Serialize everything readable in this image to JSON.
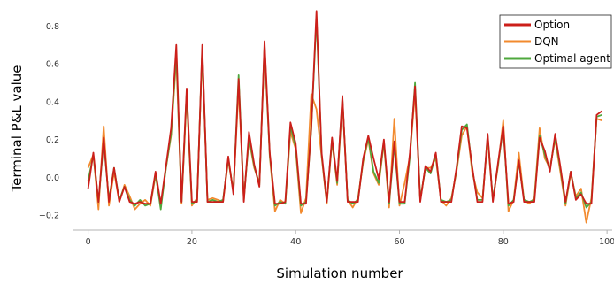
{
  "chart_data": {
    "type": "line",
    "xlabel": "Simulation number",
    "ylabel": "Terminal P&L value",
    "xlim": [
      -3,
      101
    ],
    "ylim": [
      -0.27,
      0.9
    ],
    "xticks": [
      0,
      20,
      40,
      60,
      80,
      100
    ],
    "yticks": [
      -0.2,
      0.0,
      0.2,
      0.4,
      0.6,
      0.8
    ],
    "tick_labels": {
      "x": [
        "0",
        "20",
        "40",
        "60",
        "80",
        "100"
      ],
      "y": [
        "−0.2",
        "0.0",
        "0.2",
        "0.4",
        "0.6",
        "0.8"
      ]
    },
    "grid": false,
    "legend_position": "top-right",
    "series": [
      {
        "name": "Option",
        "color": "#cc1f1a",
        "values": [
          -0.06,
          0.13,
          -0.13,
          0.21,
          -0.13,
          0.05,
          -0.13,
          -0.05,
          -0.13,
          -0.14,
          -0.13,
          -0.14,
          -0.14,
          0.03,
          -0.14,
          0.06,
          0.26,
          0.7,
          -0.13,
          0.47,
          -0.13,
          -0.13,
          0.7,
          -0.13,
          -0.13,
          -0.13,
          -0.13,
          0.11,
          -0.09,
          0.52,
          -0.13,
          0.24,
          0.07,
          -0.05,
          0.72,
          0.13,
          -0.14,
          -0.14,
          -0.13,
          0.29,
          0.18,
          -0.14,
          -0.14,
          0.26,
          0.88,
          0.13,
          -0.13,
          0.21,
          -0.02,
          0.43,
          -0.13,
          -0.13,
          -0.13,
          0.1,
          0.22,
          0.1,
          -0.01,
          0.2,
          -0.13,
          0.19,
          -0.13,
          -0.13,
          0.13,
          0.48,
          -0.13,
          0.06,
          0.03,
          0.13,
          -0.13,
          -0.13,
          -0.13,
          0.05,
          0.27,
          0.26,
          0.06,
          -0.13,
          -0.13,
          0.23,
          -0.13,
          0.08,
          0.27,
          -0.14,
          -0.13,
          0.09,
          -0.13,
          -0.13,
          -0.13,
          0.21,
          0.14,
          0.03,
          0.23,
          0.06,
          -0.13,
          0.03,
          -0.12,
          -0.09,
          -0.14,
          -0.14,
          0.33,
          0.35
        ]
      },
      {
        "name": "DQN",
        "color": "#f28a2e",
        "values": [
          0.05,
          0.12,
          -0.17,
          0.27,
          -0.15,
          0.03,
          -0.13,
          -0.04,
          -0.1,
          -0.17,
          -0.14,
          -0.12,
          -0.15,
          0.01,
          -0.15,
          0.05,
          0.22,
          0.63,
          -0.14,
          0.43,
          -0.15,
          -0.11,
          0.66,
          -0.12,
          -0.11,
          -0.12,
          -0.13,
          0.09,
          -0.07,
          0.47,
          -0.11,
          0.2,
          0.05,
          -0.03,
          0.68,
          0.11,
          -0.18,
          -0.12,
          -0.14,
          0.24,
          0.15,
          -0.19,
          -0.11,
          0.44,
          0.36,
          0.11,
          -0.14,
          0.19,
          -0.04,
          0.41,
          -0.12,
          -0.16,
          -0.11,
          0.08,
          0.2,
          0.02,
          -0.04,
          0.18,
          -0.16,
          0.31,
          -0.15,
          -0.03,
          0.11,
          0.45,
          -0.12,
          0.05,
          0.05,
          0.1,
          -0.12,
          -0.15,
          -0.11,
          0.03,
          0.22,
          0.27,
          0.03,
          -0.08,
          -0.11,
          0.2,
          -0.12,
          0.06,
          0.3,
          -0.18,
          -0.12,
          0.13,
          -0.12,
          -0.14,
          -0.11,
          0.26,
          0.1,
          0.05,
          0.2,
          0.03,
          -0.15,
          0.02,
          -0.1,
          -0.06,
          -0.24,
          -0.11,
          0.31,
          0.3
        ]
      },
      {
        "name": "Optimal agent",
        "color": "#4fa83d",
        "values": [
          -0.02,
          0.12,
          -0.13,
          0.19,
          -0.12,
          0.05,
          -0.12,
          -0.05,
          -0.12,
          -0.15,
          -0.12,
          -0.15,
          -0.14,
          0.02,
          -0.17,
          0.05,
          0.23,
          0.66,
          -0.13,
          0.45,
          -0.14,
          -0.12,
          0.68,
          -0.13,
          -0.12,
          -0.13,
          -0.12,
          0.1,
          -0.08,
          0.54,
          -0.12,
          0.21,
          0.06,
          -0.04,
          0.7,
          0.12,
          -0.15,
          -0.13,
          -0.14,
          0.27,
          0.16,
          -0.15,
          -0.13,
          0.25,
          0.85,
          0.12,
          -0.13,
          0.2,
          -0.03,
          0.42,
          -0.12,
          -0.14,
          -0.12,
          0.09,
          0.21,
          0.03,
          -0.03,
          0.19,
          -0.14,
          0.17,
          -0.14,
          -0.14,
          0.11,
          0.5,
          -0.12,
          0.05,
          0.02,
          0.12,
          -0.12,
          -0.13,
          -0.12,
          0.04,
          0.25,
          0.28,
          0.05,
          -0.12,
          -0.12,
          0.22,
          -0.12,
          0.07,
          0.26,
          -0.15,
          -0.12,
          0.08,
          -0.12,
          -0.13,
          -0.12,
          0.22,
          0.12,
          0.04,
          0.21,
          0.05,
          -0.14,
          0.03,
          -0.11,
          -0.08,
          -0.16,
          -0.13,
          0.32,
          0.33
        ]
      }
    ]
  }
}
